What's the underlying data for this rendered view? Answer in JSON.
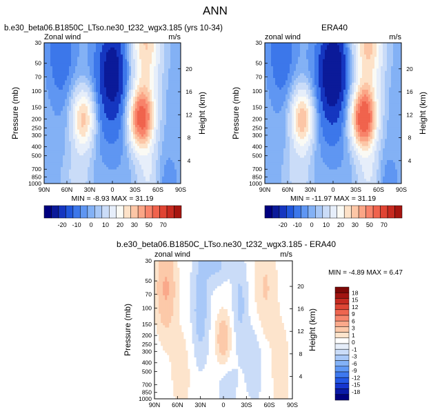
{
  "figure": {
    "title": "ANN"
  },
  "colors": {
    "blues": [
      "#00007f",
      "#0b1a99",
      "#1536c0",
      "#2157dc",
      "#3c77ea",
      "#5f96f2",
      "#83b1f5",
      "#a8c8f7",
      "#cadcf8",
      "#e6eefa"
    ],
    "light": "#fafaf4",
    "reds": [
      "#fde2c8",
      "#fcc6a6",
      "#fba586",
      "#f8836a",
      "#f0634d",
      "#e04433",
      "#c72a20",
      "#a61510",
      "#7e0906"
    ],
    "diff_blues": [
      "#00007f",
      "#0a1aa8",
      "#1636cf",
      "#2458e6",
      "#3e79ef",
      "#5f98f5",
      "#83b2f7",
      "#a8c8f8",
      "#cadcf8",
      "#e6eefa"
    ],
    "diff_reds": [
      "#fde4cc",
      "#fcc9a9",
      "#faa98b",
      "#f6866d",
      "#ee6550",
      "#de4635",
      "#c62b21",
      "#a11411",
      "#7d0807"
    ]
  },
  "chart_data": [
    {
      "type": "heatmap",
      "title": "b.e30_beta06.B1850C_LTso.ne30_t232_wgx3.185 (yrs 10-34)",
      "left_label": "Zonal wind",
      "right_label": "m/s",
      "ylabel": "Pressure (mb)",
      "ylabel_right": "Height (km)",
      "x_ticks": [
        "90N",
        "60N",
        "30N",
        "0",
        "30S",
        "60S",
        "90S"
      ],
      "y_ticks": [
        "30",
        "50",
        "70",
        "100",
        "150",
        "200",
        "250",
        "300",
        "400",
        "500",
        "700",
        "850",
        "1000"
      ],
      "height_ticks": [
        "20",
        "16",
        "12",
        "8",
        "4"
      ],
      "min_max": "MIN = -8.93 MAX = 31.19",
      "colorbar_labels": [
        "-20",
        "-10",
        "0",
        "10",
        "20",
        "30",
        "50",
        "70"
      ],
      "field": {
        "jet_strength": 28,
        "jet_lat": 38,
        "jet_p": 200,
        "tropical_easterly": -9
      }
    },
    {
      "type": "heatmap",
      "title": "ERA40",
      "left_label": "zonal wind",
      "right_label": "m/s",
      "ylabel": "Pressure (mb)",
      "ylabel_right": "Height (km)",
      "x_ticks": [
        "90N",
        "60N",
        "30N",
        "0",
        "30S",
        "60S",
        "90S"
      ],
      "y_ticks": [
        "30",
        "50",
        "70",
        "100",
        "150",
        "200",
        "250",
        "300",
        "400",
        "500",
        "700",
        "850",
        "1000"
      ],
      "height_ticks": [
        "20",
        "16",
        "12",
        "8",
        "4"
      ],
      "min_max": "MIN = -11.97 MAX = 31.19",
      "colorbar_labels": [
        "-20",
        "-10",
        "0",
        "10",
        "20",
        "30",
        "50",
        "70"
      ],
      "field": {
        "jet_strength": 30,
        "jet_lat": 40,
        "jet_p": 200,
        "tropical_easterly": -11
      }
    },
    {
      "type": "heatmap",
      "title": "b.e30_beta06.B1850C_LTso.ne30_t232_wgx3.185 - ERA40",
      "left_label": "zonal wind",
      "right_label": "m/s",
      "ylabel": "Pressure (mb)",
      "ylabel_right": "Height (km)",
      "x_ticks": [
        "90N",
        "60N",
        "30N",
        "0",
        "30S",
        "60S",
        "90S"
      ],
      "y_ticks": [
        "30",
        "50",
        "70",
        "100",
        "150",
        "200",
        "250",
        "300",
        "400",
        "500",
        "700",
        "850",
        "1000"
      ],
      "height_ticks": [
        "20",
        "16",
        "12",
        "8",
        "4"
      ],
      "min_max": "MIN = -4.89 MAX = 6.47",
      "colorbar_labels": [
        "18",
        "15",
        "12",
        "9",
        "6",
        "3",
        "1",
        "0",
        "-1",
        "-3",
        "-6",
        "-9",
        "-12",
        "-15",
        "-18"
      ]
    }
  ]
}
